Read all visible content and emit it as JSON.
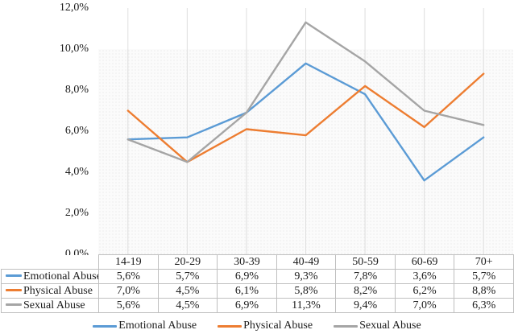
{
  "chart_data": {
    "type": "line",
    "title": "",
    "categories": [
      "14-19",
      "20-29",
      "30-39",
      "40-49",
      "50-59",
      "60-69",
      "70+"
    ],
    "series": [
      {
        "name": "Emotional Abuse",
        "color": "#5B9BD5",
        "values": [
          5.6,
          5.7,
          6.9,
          9.3,
          7.8,
          3.6,
          5.7
        ],
        "labels": [
          "5,6%",
          "5,7%",
          "6,9%",
          "9,3%",
          "7,8%",
          "3,6%",
          "5,7%"
        ]
      },
      {
        "name": "Physical Abuse",
        "color": "#ED7D31",
        "values": [
          7.0,
          4.5,
          6.1,
          5.8,
          8.2,
          6.2,
          8.8
        ],
        "labels": [
          "7,0%",
          "4,5%",
          "6,1%",
          "5,8%",
          "8,2%",
          "6,2%",
          "8,8%"
        ]
      },
      {
        "name": "Sexual Abuse",
        "color": "#A5A5A5",
        "values": [
          5.6,
          4.5,
          6.9,
          11.3,
          9.4,
          7.0,
          6.3
        ],
        "labels": [
          "5,6%",
          "4,5%",
          "6,9%",
          "11,3%",
          "9,4%",
          "7,0%",
          "6,3%"
        ]
      }
    ],
    "y_axis": {
      "tick_labels": [
        "12,0%",
        "10,0%",
        "8,0%",
        "6,0%",
        "4,0%",
        "2,0%",
        "0,0%"
      ],
      "min": 0,
      "max": 12,
      "step": 2
    },
    "xlabel": "",
    "ylabel": "",
    "legend_position": "bottom",
    "legend_items": [
      "Emotional Abuse",
      "Physical Abuse",
      "Sexual Abuse"
    ],
    "grid": "vertical-lines-at-category-centers",
    "shaded_band": {
      "from_percent": 0,
      "to_percent": 10,
      "style": "light-dotted"
    }
  }
}
